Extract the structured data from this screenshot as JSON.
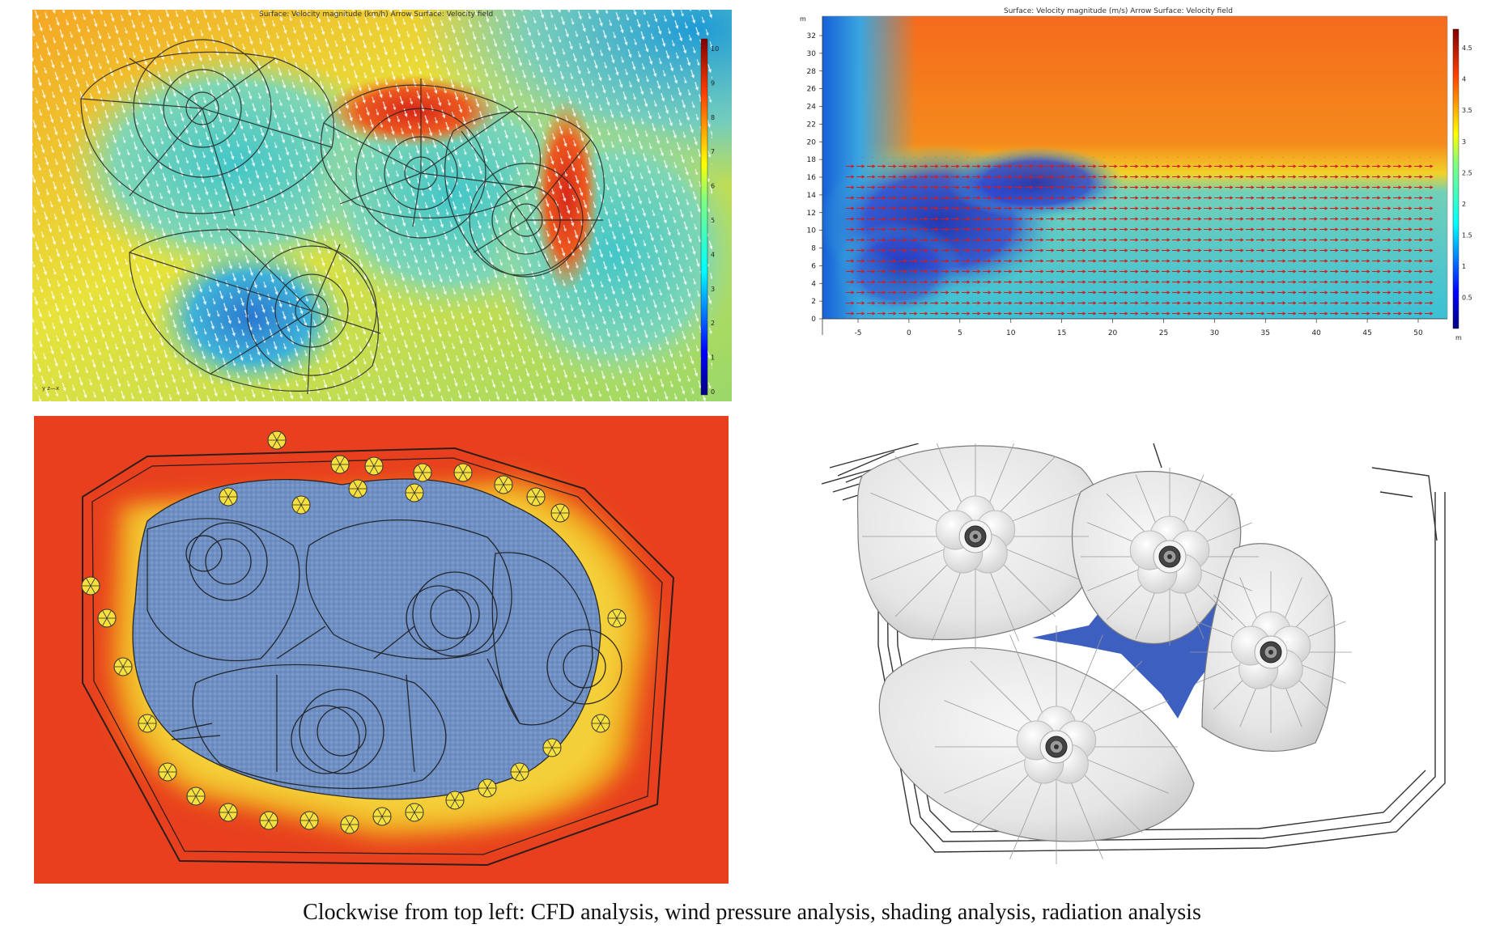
{
  "panels": {
    "cfd": {
      "title": "Surface: Velocity magnitude (km/h)  Arrow Surface: Velocity field",
      "colorbar_ticks": [
        "10",
        "9",
        "8",
        "7",
        "6",
        "5",
        "4",
        "3",
        "2",
        "1",
        "0"
      ],
      "axis_hint": "y\nz—x"
    },
    "wind": {
      "title": "Surface: Velocity magnitude (m/s)  Arrow Surface: Velocity field",
      "y_unit": "m",
      "x_unit": "m",
      "y_ticks": [
        "32",
        "30",
        "28",
        "26",
        "24",
        "22",
        "20",
        "18",
        "16",
        "14",
        "12",
        "10",
        "8",
        "6",
        "4",
        "2",
        "0"
      ],
      "x_ticks": [
        "-5",
        "0",
        "5",
        "10",
        "15",
        "20",
        "25",
        "30",
        "35",
        "40",
        "45",
        "50"
      ],
      "colorbar_ticks": [
        "4.5",
        "4",
        "3.5",
        "3",
        "2.5",
        "2",
        "1.5",
        "1",
        "0.5"
      ]
    },
    "shading": {},
    "radiation": {}
  },
  "caption": "Clockwise from top left: CFD analysis, wind pressure analysis, shading analysis, radiation analysis",
  "colors": {
    "jet_red": "#d7301f",
    "jet_orange": "#f57b18",
    "jet_yellow": "#f5e51c",
    "jet_cyan": "#35c5d0",
    "jet_blue": "#1f3fbf",
    "shade_blue": "#6f8fc2",
    "roof_gray": "#e6e6e6",
    "glass_blue": "#3355bb"
  }
}
